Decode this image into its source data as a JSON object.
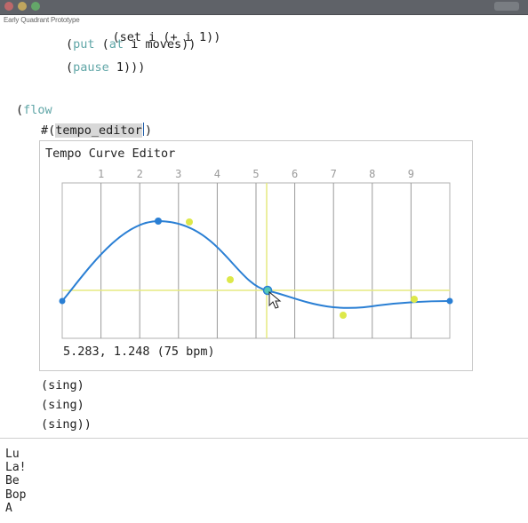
{
  "window": {
    "title": "Early Quadrant Prototype"
  },
  "code": {
    "line1": "(set i (+ i 1))",
    "line2_kw": "put",
    "line2_kw2": "at",
    "line2_text": "i moves))",
    "line3_kw": "pause",
    "line3_text": "1)))",
    "flow_kw": "flow",
    "embed_prefix": "#(",
    "embed_name": "tempo_editor",
    "embed_suffix": ")",
    "sing1": "(sing)",
    "sing2": "(sing)",
    "sing3": "(sing))"
  },
  "editor": {
    "title": "Tempo Curve Editor",
    "ticks": [
      "1",
      "2",
      "3",
      "4",
      "5",
      "6",
      "7",
      "8",
      "9"
    ],
    "readout": "5.283, 1.248 (75 bpm)"
  },
  "output": [
    "Lu",
    "La!",
    "Be",
    "Bop",
    "A"
  ],
  "colors": {
    "curve": "#2a7fd4",
    "control_point": "#dde84a",
    "grid": "#9a9a9a",
    "crosshair": "#e6ea80",
    "keyword": "#60a6a7"
  }
}
